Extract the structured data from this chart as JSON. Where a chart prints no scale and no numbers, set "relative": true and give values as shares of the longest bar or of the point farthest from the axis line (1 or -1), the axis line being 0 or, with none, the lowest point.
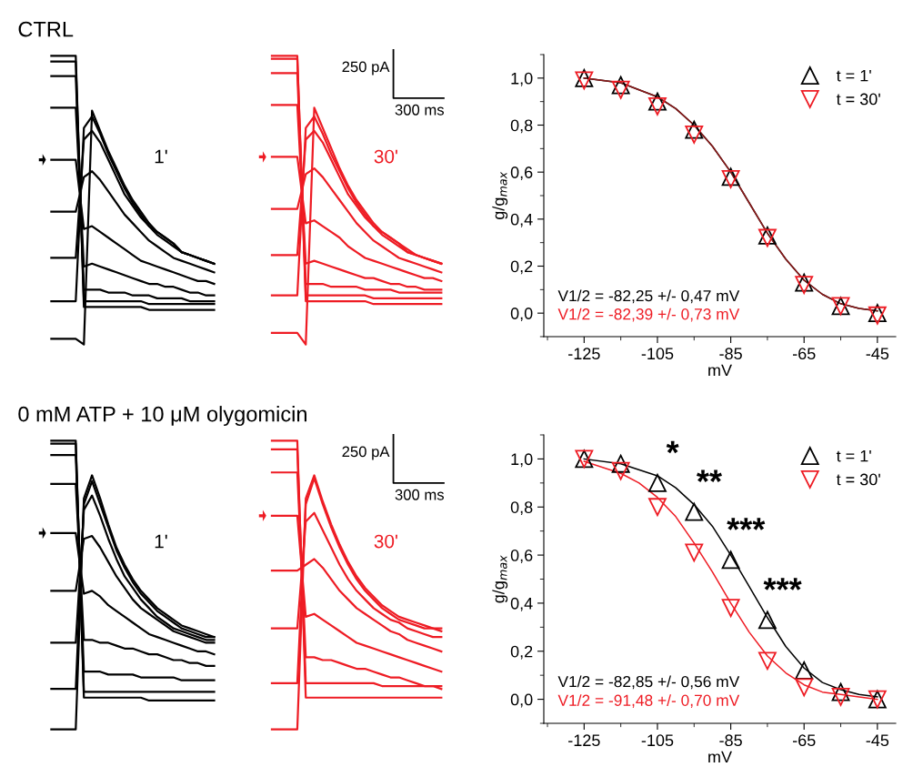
{
  "chart_data": [
    {
      "type": "line",
      "title": "CTRL",
      "relative": true,
      "categories": [
        null,
        null,
        null,
        null,
        null,
        null,
        null,
        null,
        null,
        null,
        null,
        null,
        null,
        null,
        null,
        null,
        null,
        null,
        null,
        null,
        null
      ],
      "annotations": [
        "1'"
      ],
      "series": [
        {
          "color": "#000000",
          "values": [
            0.02,
            0.02,
            0.02,
            0.02,
            0.0,
            0.81,
            0.74,
            0.67,
            0.61,
            0.55,
            0.5,
            0.46,
            0.42,
            0.39,
            0.37,
            0.35,
            0.32,
            0.31,
            0.3,
            0.29,
            0.28
          ]
        },
        {
          "color": "#000000",
          "values": [
            0.15,
            0.15,
            0.15,
            0.15,
            0.75,
            0.79,
            0.73,
            0.66,
            0.6,
            0.54,
            0.49,
            0.45,
            0.41,
            0.39,
            0.37,
            0.35,
            0.32,
            0.31,
            0.3,
            0.29,
            0.28
          ]
        },
        {
          "color": "#000000",
          "values": [
            0.3,
            0.3,
            0.3,
            0.3,
            0.71,
            0.74,
            0.7,
            0.64,
            0.58,
            0.52,
            0.48,
            0.44,
            0.41,
            0.38,
            0.36,
            0.34,
            0.32,
            0.31,
            0.3,
            0.29,
            0.28
          ]
        },
        {
          "color": "#000000",
          "values": [
            0.46,
            0.46,
            0.46,
            0.46,
            0.58,
            0.6,
            0.57,
            0.53,
            0.49,
            0.45,
            0.42,
            0.39,
            0.36,
            0.34,
            0.32,
            0.3,
            0.29,
            0.28,
            0.27,
            0.26,
            0.25
          ]
        },
        {
          "color": "#000000",
          "values": [
            0.64,
            0.64,
            0.64,
            0.64,
            0.4,
            0.41,
            0.39,
            0.37,
            0.35,
            0.33,
            0.31,
            0.29,
            0.28,
            0.27,
            0.26,
            0.25,
            0.24,
            0.23,
            0.22,
            0.22,
            0.21
          ]
        },
        {
          "color": "#000000",
          "values": [
            0.82,
            0.82,
            0.82,
            0.82,
            0.27,
            0.28,
            0.27,
            0.26,
            0.25,
            0.24,
            0.23,
            0.22,
            0.21,
            0.21,
            0.2,
            0.2,
            0.19,
            0.18,
            0.18,
            0.17,
            0.17
          ]
        },
        {
          "color": "#000000",
          "values": [
            0.93,
            0.93,
            0.93,
            0.93,
            0.19,
            0.19,
            0.19,
            0.18,
            0.18,
            0.18,
            0.17,
            0.17,
            0.17,
            0.16,
            0.16,
            0.16,
            0.16,
            0.15,
            0.15,
            0.15,
            0.15
          ]
        },
        {
          "color": "#000000",
          "values": [
            0.98,
            0.98,
            0.98,
            0.98,
            0.15,
            0.15,
            0.15,
            0.15,
            0.15,
            0.15,
            0.15,
            0.15,
            0.14,
            0.14,
            0.14,
            0.14,
            0.14,
            0.14,
            0.14,
            0.14,
            0.14
          ]
        },
        {
          "color": "#000000",
          "values": [
            1.0,
            1.0,
            1.0,
            1.0,
            0.13,
            0.13,
            0.13,
            0.13,
            0.13,
            0.13,
            0.13,
            0.13,
            0.12,
            0.12,
            0.12,
            0.12,
            0.12,
            0.12,
            0.12,
            0.12,
            0.12
          ]
        }
      ]
    },
    {
      "type": "line",
      "relative": true,
      "categories": [
        null,
        null,
        null,
        null,
        null,
        null,
        null,
        null,
        null,
        null,
        null,
        null,
        null,
        null,
        null,
        null,
        null,
        null,
        null,
        null,
        null
      ],
      "annotations": [
        "30'",
        "250 pA",
        "300 ms"
      ],
      "series": [
        {
          "color": "#ee1c24",
          "values": [
            0.04,
            0.04,
            0.04,
            0.04,
            0.0,
            0.82,
            0.75,
            0.68,
            0.61,
            0.55,
            0.5,
            0.46,
            0.42,
            0.39,
            0.37,
            0.35,
            0.33,
            0.31,
            0.3,
            0.29,
            0.28
          ]
        },
        {
          "color": "#ee1c24",
          "values": [
            0.17,
            0.17,
            0.17,
            0.17,
            0.75,
            0.79,
            0.73,
            0.66,
            0.6,
            0.54,
            0.49,
            0.45,
            0.41,
            0.39,
            0.37,
            0.35,
            0.32,
            0.31,
            0.3,
            0.29,
            0.28
          ]
        },
        {
          "color": "#ee1c24",
          "values": [
            0.31,
            0.31,
            0.31,
            0.31,
            0.71,
            0.74,
            0.7,
            0.64,
            0.58,
            0.52,
            0.48,
            0.44,
            0.41,
            0.38,
            0.36,
            0.34,
            0.32,
            0.31,
            0.3,
            0.29,
            0.28
          ]
        },
        {
          "color": "#ee1c24",
          "values": [
            0.47,
            0.47,
            0.47,
            0.47,
            0.59,
            0.61,
            0.58,
            0.54,
            0.5,
            0.46,
            0.42,
            0.39,
            0.36,
            0.34,
            0.32,
            0.3,
            0.29,
            0.28,
            0.27,
            0.26,
            0.25
          ]
        },
        {
          "color": "#ee1c24",
          "values": [
            0.65,
            0.65,
            0.65,
            0.65,
            0.42,
            0.43,
            0.41,
            0.39,
            0.37,
            0.34,
            0.32,
            0.3,
            0.29,
            0.28,
            0.27,
            0.26,
            0.25,
            0.24,
            0.23,
            0.23,
            0.22
          ]
        },
        {
          "color": "#ee1c24",
          "values": [
            0.83,
            0.83,
            0.83,
            0.83,
            0.28,
            0.29,
            0.28,
            0.27,
            0.26,
            0.25,
            0.24,
            0.23,
            0.23,
            0.22,
            0.21,
            0.21,
            0.2,
            0.2,
            0.19,
            0.19,
            0.19
          ]
        },
        {
          "color": "#ee1c24",
          "values": [
            0.94,
            0.94,
            0.94,
            0.94,
            0.21,
            0.21,
            0.21,
            0.2,
            0.2,
            0.2,
            0.2,
            0.19,
            0.19,
            0.19,
            0.19,
            0.18,
            0.18,
            0.18,
            0.18,
            0.18,
            0.18
          ]
        },
        {
          "color": "#ee1c24",
          "values": [
            0.99,
            0.99,
            0.99,
            0.99,
            0.17,
            0.17,
            0.17,
            0.17,
            0.17,
            0.17,
            0.17,
            0.17,
            0.16,
            0.16,
            0.16,
            0.16,
            0.16,
            0.16,
            0.16,
            0.16,
            0.16
          ]
        },
        {
          "color": "#ee1c24",
          "values": [
            1.0,
            1.0,
            1.0,
            1.0,
            0.15,
            0.15,
            0.15,
            0.15,
            0.15,
            0.15,
            0.15,
            0.15,
            0.14,
            0.14,
            0.14,
            0.14,
            0.14,
            0.14,
            0.14,
            0.14,
            0.14
          ]
        }
      ]
    },
    {
      "type": "scatter",
      "xlabel": "mV",
      "ylabel": "g/g$_{max}$",
      "legend": "top right",
      "xlim": [
        -136,
        -40
      ],
      "xticks": [
        -125,
        -105,
        -85,
        -65,
        -45
      ],
      "ylim": [
        -0.1,
        1.1
      ],
      "yticks": [
        {
          "value": 0.0,
          "label": "0,0"
        },
        {
          "value": 0.2,
          "label": "0,2"
        },
        {
          "value": 0.4,
          "label": "0,4"
        },
        {
          "value": 0.6,
          "label": "0,6"
        },
        {
          "value": 0.8,
          "label": "0,8"
        },
        {
          "value": 1.0,
          "label": "1,0"
        }
      ],
      "x": [
        -125,
        -115,
        -105,
        -95,
        -85,
        -75,
        -65,
        -55,
        -45
      ],
      "annotations": [
        "V1/2 = -82,25 +/- 0,47 mV",
        "V1/2 = -82,39 +/- 0,73 mV"
      ],
      "series": [
        {
          "name": "t = 1'",
          "color": "#000000",
          "marker": "triangle",
          "values": [
            1.0,
            0.97,
            0.9,
            0.78,
            0.58,
            0.33,
            0.13,
            0.03,
            0.0
          ]
        },
        {
          "name": "t = 30'",
          "color": "#ee1c24",
          "marker": "triangle down",
          "values": [
            0.99,
            0.95,
            0.88,
            0.76,
            0.57,
            0.32,
            0.12,
            0.03,
            -0.01
          ]
        },
        {
          "type": "line",
          "color": "#000000",
          "x": [
            -125,
            -115,
            -105,
            -100,
            -95,
            -90,
            -85,
            -80,
            -75,
            -70,
            -65,
            -60,
            -55,
            -50,
            -45
          ],
          "values": [
            1.0,
            0.98,
            0.92,
            0.87,
            0.8,
            0.71,
            0.6,
            0.47,
            0.34,
            0.23,
            0.14,
            0.08,
            0.04,
            0.02,
            0.01
          ]
        },
        {
          "type": "line",
          "color": "#8b1a1a",
          "x": [
            -125,
            -115,
            -105,
            -100,
            -95,
            -90,
            -85,
            -80,
            -75,
            -70,
            -65,
            -60,
            -55,
            -50,
            -45
          ],
          "values": [
            1.0,
            0.98,
            0.92,
            0.87,
            0.8,
            0.71,
            0.6,
            0.47,
            0.34,
            0.23,
            0.14,
            0.08,
            0.04,
            0.02,
            0.01
          ]
        }
      ]
    },
    {
      "type": "line",
      "title": "0 mM ATP + 10 μM olygomicin",
      "relative": true,
      "categories": [
        null,
        null,
        null,
        null,
        null,
        null,
        null,
        null,
        null,
        null,
        null,
        null,
        null,
        null,
        null,
        null,
        null,
        null,
        null,
        null,
        null
      ],
      "annotations": [
        "1'"
      ],
      "series": [
        {
          "color": "#000000",
          "values": [
            0.0,
            0.0,
            0.0,
            0.0,
            0.8,
            0.88,
            0.8,
            0.71,
            0.63,
            0.57,
            0.52,
            0.48,
            0.45,
            0.42,
            0.4,
            0.38,
            0.36,
            0.35,
            0.34,
            0.33,
            0.32
          ]
        },
        {
          "color": "#000000",
          "values": [
            0.14,
            0.14,
            0.14,
            0.14,
            0.78,
            0.86,
            0.78,
            0.7,
            0.62,
            0.56,
            0.51,
            0.47,
            0.44,
            0.41,
            0.39,
            0.37,
            0.35,
            0.34,
            0.33,
            0.32,
            0.32
          ]
        },
        {
          "color": "#000000",
          "values": [
            0.3,
            0.3,
            0.3,
            0.3,
            0.76,
            0.81,
            0.74,
            0.66,
            0.59,
            0.53,
            0.49,
            0.45,
            0.42,
            0.39,
            0.37,
            0.35,
            0.34,
            0.33,
            0.32,
            0.31,
            0.31
          ]
        },
        {
          "color": "#000000",
          "values": [
            0.48,
            0.48,
            0.48,
            0.48,
            0.66,
            0.67,
            0.63,
            0.58,
            0.53,
            0.49,
            0.45,
            0.42,
            0.4,
            0.38,
            0.36,
            0.34,
            0.33,
            0.32,
            0.31,
            0.3,
            0.3
          ]
        },
        {
          "color": "#000000",
          "values": [
            0.68,
            0.68,
            0.68,
            0.68,
            0.47,
            0.48,
            0.46,
            0.43,
            0.41,
            0.39,
            0.37,
            0.35,
            0.33,
            0.32,
            0.31,
            0.3,
            0.29,
            0.28,
            0.27,
            0.27,
            0.26
          ]
        },
        {
          "color": "#000000",
          "values": [
            0.85,
            0.85,
            0.85,
            0.85,
            0.31,
            0.31,
            0.3,
            0.3,
            0.29,
            0.28,
            0.28,
            0.27,
            0.26,
            0.26,
            0.25,
            0.24,
            0.24,
            0.23,
            0.23,
            0.22,
            0.22
          ]
        },
        {
          "color": "#000000",
          "values": [
            0.95,
            0.95,
            0.95,
            0.95,
            0.2,
            0.2,
            0.2,
            0.19,
            0.19,
            0.19,
            0.19,
            0.18,
            0.18,
            0.18,
            0.18,
            0.18,
            0.17,
            0.17,
            0.17,
            0.17,
            0.17
          ]
        },
        {
          "color": "#000000",
          "values": [
            0.99,
            0.99,
            0.99,
            0.99,
            0.13,
            0.13,
            0.13,
            0.13,
            0.13,
            0.13,
            0.13,
            0.13,
            0.13,
            0.13,
            0.13,
            0.13,
            0.13,
            0.13,
            0.13,
            0.13,
            0.13
          ]
        },
        {
          "color": "#000000",
          "values": [
            1.0,
            1.0,
            1.0,
            1.0,
            0.11,
            0.11,
            0.11,
            0.11,
            0.11,
            0.11,
            0.11,
            0.11,
            0.1,
            0.1,
            0.1,
            0.1,
            0.1,
            0.1,
            0.1,
            0.1,
            0.1
          ]
        }
      ]
    },
    {
      "type": "line",
      "relative": true,
      "categories": [
        null,
        null,
        null,
        null,
        null,
        null,
        null,
        null,
        null,
        null,
        null,
        null,
        null,
        null,
        null,
        null,
        null,
        null,
        null,
        null,
        null
      ],
      "annotations": [
        "30'",
        "250 pA",
        "300 ms"
      ],
      "series": [
        {
          "color": "#ee1c24",
          "values": [
            0.0,
            0.0,
            0.0,
            0.0,
            0.8,
            0.88,
            0.79,
            0.71,
            0.64,
            0.58,
            0.53,
            0.49,
            0.46,
            0.43,
            0.41,
            0.39,
            0.38,
            0.37,
            0.36,
            0.35,
            0.35
          ]
        },
        {
          "color": "#ee1c24",
          "values": [
            0.16,
            0.16,
            0.16,
            0.16,
            0.78,
            0.87,
            0.78,
            0.7,
            0.63,
            0.57,
            0.52,
            0.48,
            0.45,
            0.42,
            0.4,
            0.38,
            0.37,
            0.36,
            0.35,
            0.35,
            0.34
          ]
        },
        {
          "color": "#ee1c24",
          "values": [
            0.35,
            0.35,
            0.35,
            0.35,
            0.72,
            0.75,
            0.69,
            0.63,
            0.57,
            0.52,
            0.48,
            0.45,
            0.42,
            0.4,
            0.38,
            0.37,
            0.35,
            0.34,
            0.33,
            0.32,
            0.32
          ]
        },
        {
          "color": "#ee1c24",
          "values": [
            0.55,
            0.55,
            0.55,
            0.55,
            0.57,
            0.59,
            0.56,
            0.52,
            0.48,
            0.45,
            0.42,
            0.4,
            0.38,
            0.36,
            0.34,
            0.33,
            0.31,
            0.3,
            0.29,
            0.28,
            0.27
          ]
        },
        {
          "color": "#ee1c24",
          "values": [
            0.74,
            0.74,
            0.74,
            0.74,
            0.39,
            0.4,
            0.38,
            0.36,
            0.34,
            0.32,
            0.3,
            0.29,
            0.28,
            0.27,
            0.26,
            0.25,
            0.24,
            0.23,
            0.22,
            0.21,
            0.2
          ]
        },
        {
          "color": "#ee1c24",
          "values": [
            0.89,
            0.89,
            0.89,
            0.89,
            0.25,
            0.25,
            0.24,
            0.24,
            0.23,
            0.22,
            0.21,
            0.21,
            0.2,
            0.19,
            0.18,
            0.18,
            0.17,
            0.16,
            0.15,
            0.15,
            0.14
          ]
        },
        {
          "color": "#ee1c24",
          "values": [
            0.97,
            0.97,
            0.97,
            0.97,
            0.16,
            0.16,
            0.16,
            0.16,
            0.16,
            0.16,
            0.16,
            0.16,
            0.16,
            0.15,
            0.15,
            0.15,
            0.15,
            0.15,
            0.15,
            0.15,
            0.15
          ]
        },
        {
          "color": "#ee1c24",
          "values": [
            1.0,
            1.0,
            1.0,
            1.0,
            0.11,
            0.11,
            0.11,
            0.11,
            0.11,
            0.11,
            0.11,
            0.11,
            0.11,
            0.11,
            0.11,
            0.11,
            0.11,
            0.11,
            0.11,
            0.11,
            0.11
          ]
        }
      ]
    },
    {
      "type": "scatter",
      "xlabel": "mV",
      "ylabel": "g/g$_{max}$",
      "legend": "top right",
      "xlim": [
        -136,
        -40
      ],
      "xticks": [
        -125,
        -105,
        -85,
        -65,
        -45
      ],
      "ylim": [
        -0.1,
        1.1
      ],
      "yticks": [
        {
          "value": 0.0,
          "label": "0,0"
        },
        {
          "value": 0.2,
          "label": "0,2"
        },
        {
          "value": 0.4,
          "label": "0,4"
        },
        {
          "value": 0.6,
          "label": "0,6"
        },
        {
          "value": 0.8,
          "label": "0,8"
        },
        {
          "value": 1.0,
          "label": "1,0"
        }
      ],
      "x": [
        -125,
        -115,
        -105,
        -95,
        -85,
        -75,
        -65,
        -55,
        -45
      ],
      "annotations": [
        "V1/2 = -82,85 +/- 0,56 mV",
        "V1/2 = -91,48 +/- 0,70 mV",
        "*",
        "**",
        "***",
        "***"
      ],
      "series": [
        {
          "name": "t = 1'",
          "color": "#000000",
          "marker": "triangle",
          "values": [
            1.0,
            0.98,
            0.9,
            0.78,
            0.58,
            0.33,
            0.12,
            0.03,
            0.0
          ]
        },
        {
          "name": "t = 30'",
          "color": "#ee1c24",
          "marker": "triangle down",
          "values": [
            1.0,
            0.95,
            0.8,
            0.61,
            0.38,
            0.16,
            0.05,
            0.01,
            0.0
          ]
        },
        {
          "type": "line",
          "color": "#000000",
          "x": [
            -125,
            -115,
            -105,
            -100,
            -95,
            -90,
            -85,
            -80,
            -75,
            -70,
            -65,
            -60,
            -55,
            -50,
            -45
          ],
          "values": [
            1.0,
            0.98,
            0.93,
            0.88,
            0.81,
            0.72,
            0.6,
            0.47,
            0.34,
            0.22,
            0.13,
            0.07,
            0.04,
            0.02,
            0.01
          ]
        },
        {
          "type": "line",
          "color": "#ee1c24",
          "x": [
            -125,
            -115,
            -110,
            -105,
            -100,
            -95,
            -90,
            -85,
            -80,
            -75,
            -70,
            -65,
            -60,
            -55,
            -50,
            -45
          ],
          "values": [
            0.99,
            0.94,
            0.9,
            0.84,
            0.76,
            0.65,
            0.53,
            0.4,
            0.28,
            0.18,
            0.11,
            0.06,
            0.03,
            0.02,
            0.01,
            0.0
          ]
        }
      ]
    }
  ]
}
